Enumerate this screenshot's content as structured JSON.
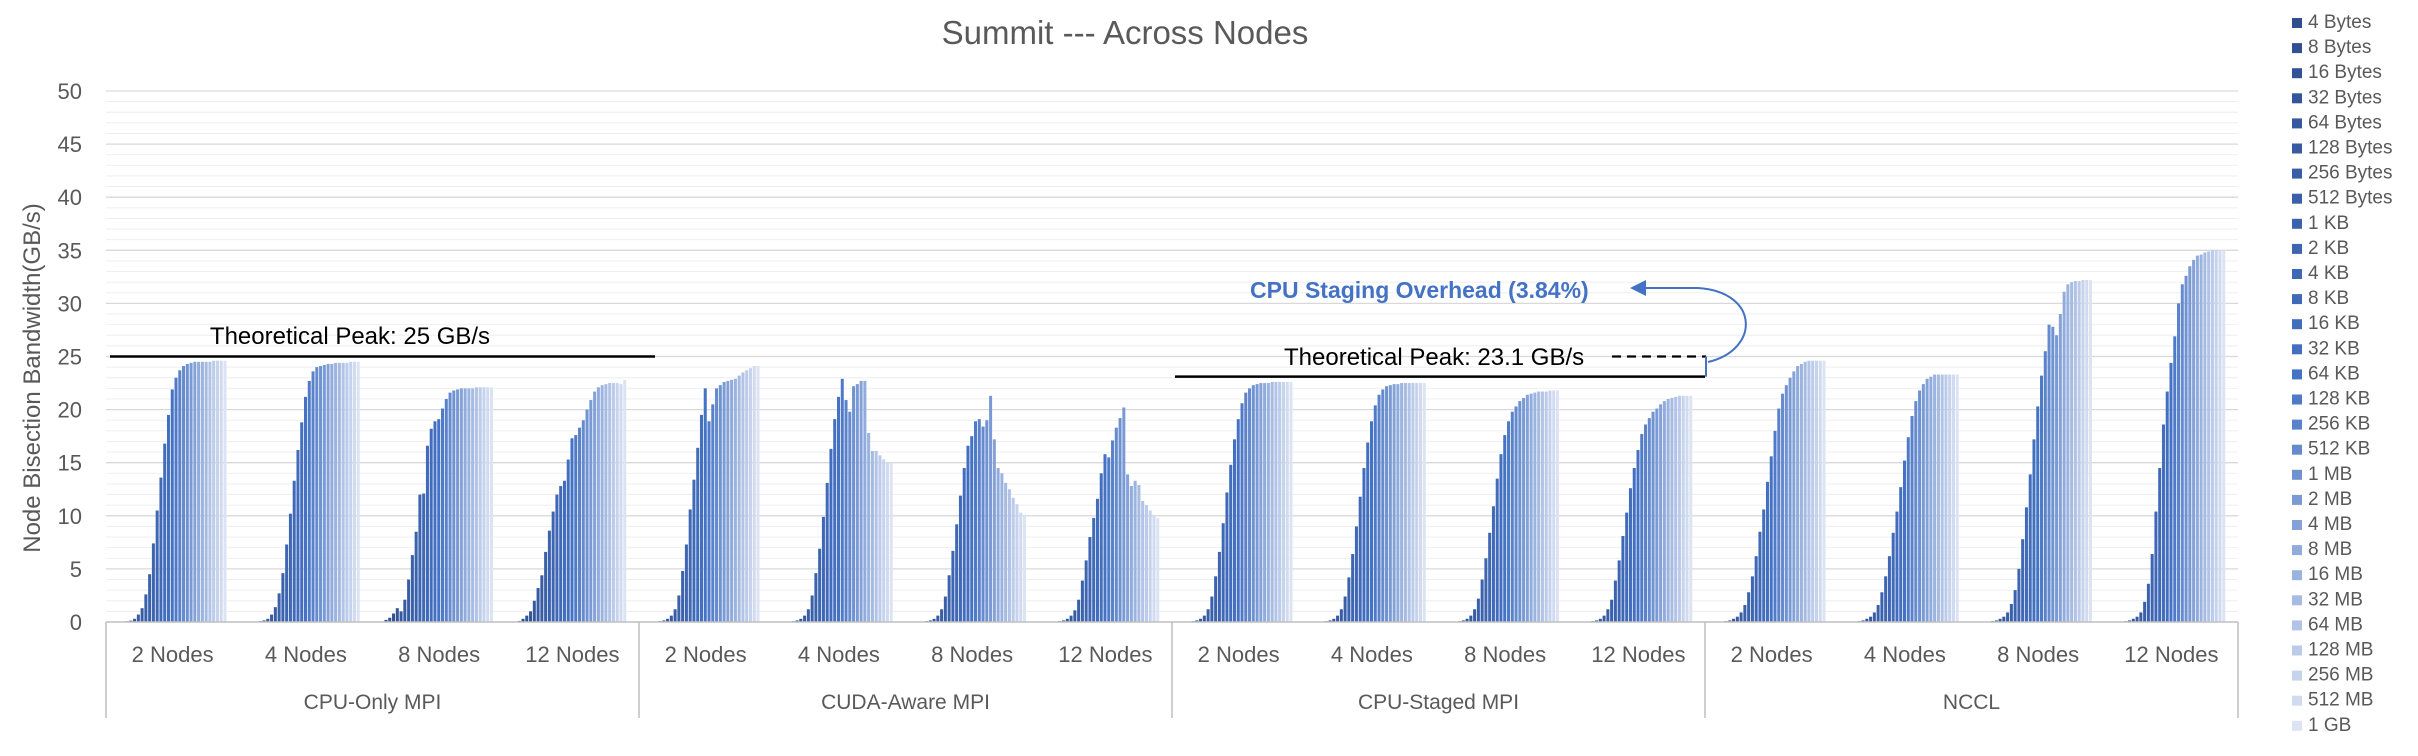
{
  "chart_data": {
    "type": "bar",
    "title": "Summit --- Across Nodes",
    "ylabel": "Node Bisection Bandwidth(GB/s)",
    "ylim": [
      0,
      50
    ],
    "yticks": [
      0,
      5,
      10,
      15,
      20,
      25,
      30,
      35,
      40,
      45,
      50
    ],
    "grid": true,
    "legend_position": "right",
    "legend": [
      "4 Bytes",
      "8 Bytes",
      "16 Bytes",
      "32 Bytes",
      "64 Bytes",
      "128 Bytes",
      "256 Bytes",
      "512 Bytes",
      "1 KB",
      "2 KB",
      "4 KB",
      "8 KB",
      "16 KB",
      "32 KB",
      "64 KB",
      "128 KB",
      "256 KB",
      "512 KB",
      "1 MB",
      "2 MB",
      "4 MB",
      "8 MB",
      "16 MB",
      "32 MB",
      "64 MB",
      "128 MB",
      "256 MB",
      "512 MB",
      "1 GB"
    ],
    "groups": [
      {
        "name": "CPU-Only MPI",
        "categories": [
          {
            "label": "2 Nodes",
            "values": [
              0.02,
              0.03,
              0.07,
              0.13,
              0.3,
              0.7,
              1.3,
              2.6,
              4.5,
              7.4,
              10.5,
              13.6,
              16.8,
              19.5,
              21.9,
              23.0,
              23.7,
              24.1,
              24.3,
              24.4,
              24.5,
              24.5,
              24.5,
              24.5,
              24.5,
              24.6,
              24.6,
              24.6,
              24.6
            ]
          },
          {
            "label": "4 Nodes",
            "values": [
              0.02,
              0.04,
              0.08,
              0.15,
              0.3,
              0.7,
              1.4,
              2.7,
              4.6,
              7.3,
              10.2,
              13.3,
              16.2,
              18.8,
              21.2,
              22.7,
              23.6,
              24.0,
              24.1,
              24.2,
              24.3,
              24.3,
              24.4,
              24.4,
              24.4,
              24.4,
              24.5,
              24.5,
              24.5
            ]
          },
          {
            "label": "8 Nodes",
            "values": [
              0.2,
              0.4,
              0.8,
              1.3,
              1.0,
              2.1,
              4.0,
              6.3,
              8.5,
              12.0,
              12.1,
              16.6,
              18.2,
              18.9,
              19.1,
              20.1,
              21.0,
              21.6,
              21.8,
              21.9,
              22.0,
              22.0,
              22.0,
              22.0,
              22.1,
              22.1,
              22.1,
              22.1,
              22.1
            ]
          },
          {
            "label": "12 Nodes",
            "values": [
              0.1,
              0.3,
              0.6,
              1.0,
              2.0,
              3.2,
              4.4,
              6.6,
              8.6,
              10.4,
              12.0,
              12.8,
              13.3,
              15.3,
              17.3,
              17.6,
              18.3,
              19.0,
              20.0,
              20.9,
              21.7,
              22.1,
              22.3,
              22.4,
              22.5,
              22.5,
              22.5,
              22.4,
              22.8
            ]
          }
        ]
      },
      {
        "name": "CUDA-Aware MPI",
        "categories": [
          {
            "label": "2 Nodes",
            "values": [
              0.02,
              0.04,
              0.08,
              0.15,
              0.3,
              0.6,
              1.2,
              2.5,
              4.8,
              7.3,
              10.6,
              13.4,
              16.4,
              19.5,
              22.0,
              18.9,
              20.5,
              22.0,
              22.3,
              22.6,
              22.7,
              22.8,
              22.9,
              23.2,
              23.5,
              23.7,
              23.9,
              24.1,
              24.1
            ]
          },
          {
            "label": "4 Nodes",
            "values": [
              0.02,
              0.04,
              0.08,
              0.15,
              0.3,
              0.6,
              1.2,
              2.5,
              4.6,
              6.9,
              9.9,
              13.1,
              16.3,
              19.1,
              21.2,
              22.9,
              20.9,
              19.8,
              22.2,
              22.4,
              22.7,
              22.7,
              17.8,
              16.1,
              16.1,
              15.7,
              15.3,
              15.0,
              15.0
            ]
          },
          {
            "label": "8 Nodes",
            "values": [
              0.02,
              0.04,
              0.08,
              0.15,
              0.3,
              0.6,
              1.2,
              2.4,
              4.4,
              6.7,
              9.2,
              11.9,
              14.5,
              16.6,
              17.5,
              18.9,
              19.1,
              18.4,
              19.0,
              21.3,
              17.2,
              14.5,
              14.0,
              13.1,
              12.5,
              11.7,
              11.1,
              10.3,
              10.1
            ]
          },
          {
            "label": "12 Nodes",
            "values": [
              0.02,
              0.04,
              0.08,
              0.15,
              0.3,
              0.6,
              1.1,
              2.1,
              3.9,
              5.8,
              8.0,
              9.8,
              11.6,
              14.0,
              15.8,
              15.5,
              17.1,
              18.3,
              19.2,
              20.2,
              13.9,
              12.8,
              13.3,
              12.9,
              11.4,
              11.0,
              10.5,
              10.1,
              9.8
            ]
          }
        ]
      },
      {
        "name": "CPU-Staged MPI",
        "categories": [
          {
            "label": "2 Nodes",
            "values": [
              0.02,
              0.04,
              0.08,
              0.15,
              0.3,
              0.6,
              1.2,
              2.4,
              4.3,
              6.6,
              9.3,
              12.2,
              14.8,
              17.2,
              19.1,
              20.6,
              21.6,
              22.0,
              22.3,
              22.4,
              22.5,
              22.5,
              22.5,
              22.6,
              22.6,
              22.6,
              22.6,
              22.6,
              22.6
            ]
          },
          {
            "label": "4 Nodes",
            "values": [
              0.02,
              0.04,
              0.08,
              0.15,
              0.3,
              0.6,
              1.2,
              2.4,
              4.2,
              6.4,
              9.0,
              11.8,
              14.5,
              16.9,
              18.9,
              20.4,
              21.4,
              21.9,
              22.2,
              22.3,
              22.4,
              22.4,
              22.5,
              22.5,
              22.5,
              22.5,
              22.5,
              22.5,
              22.5
            ]
          },
          {
            "label": "8 Nodes",
            "values": [
              0.02,
              0.04,
              0.08,
              0.15,
              0.3,
              0.6,
              1.2,
              2.2,
              4.0,
              6.0,
              8.4,
              10.9,
              13.5,
              15.8,
              17.6,
              18.9,
              19.8,
              20.3,
              20.8,
              21.1,
              21.4,
              21.5,
              21.6,
              21.7,
              21.7,
              21.7,
              21.8,
              21.8,
              21.8
            ]
          },
          {
            "label": "12 Nodes",
            "values": [
              0.02,
              0.04,
              0.08,
              0.15,
              0.3,
              0.6,
              1.2,
              2.1,
              3.9,
              5.8,
              8.1,
              10.3,
              12.6,
              14.5,
              16.2,
              17.7,
              18.6,
              19.2,
              19.8,
              20.1,
              20.5,
              20.8,
              21.0,
              21.1,
              21.2,
              21.3,
              21.3,
              21.3,
              21.3
            ]
          }
        ]
      },
      {
        "name": "NCCL",
        "categories": [
          {
            "label": "2 Nodes",
            "values": [
              0.02,
              0.04,
              0.08,
              0.15,
              0.3,
              0.5,
              0.9,
              1.6,
              2.8,
              4.3,
              6.2,
              8.5,
              10.6,
              13.2,
              15.6,
              18.0,
              20.1,
              21.5,
              22.3,
              23.0,
              23.6,
              24.1,
              24.3,
              24.5,
              24.6,
              24.6,
              24.6,
              24.6,
              24.6
            ]
          },
          {
            "label": "4 Nodes",
            "values": [
              0.02,
              0.04,
              0.08,
              0.15,
              0.3,
              0.5,
              0.9,
              1.6,
              2.8,
              4.3,
              6.2,
              8.4,
              10.4,
              12.7,
              15.2,
              17.4,
              19.4,
              20.8,
              21.8,
              22.4,
              22.9,
              23.1,
              23.3,
              23.3,
              23.3,
              23.3,
              23.3,
              23.3,
              23.3
            ]
          },
          {
            "label": "8 Nodes",
            "values": [
              0.02,
              0.04,
              0.08,
              0.15,
              0.3,
              0.5,
              0.9,
              1.7,
              3.0,
              5.0,
              7.8,
              10.8,
              13.9,
              17.2,
              20.3,
              23.2,
              25.5,
              28.0,
              27.8,
              27.0,
              29.0,
              31.1,
              31.8,
              32.0,
              32.1,
              32.1,
              32.2,
              32.2,
              32.2
            ]
          },
          {
            "label": "12 Nodes",
            "values": [
              0.02,
              0.04,
              0.08,
              0.15,
              0.3,
              0.5,
              0.9,
              1.9,
              3.6,
              6.4,
              10.4,
              14.5,
              18.6,
              21.7,
              24.4,
              26.9,
              30.0,
              31.8,
              32.6,
              33.5,
              34.1,
              34.5,
              34.6,
              34.8,
              34.9,
              35.0,
              35.0,
              35.0,
              35.0
            ]
          }
        ]
      }
    ],
    "annotations": {
      "peak_cpu_only": "Theoretical Peak: 25 GB/s",
      "peak_cpu_only_value": 25,
      "peak_cpu_staged": "Theoretical Peak: 23.1 GB/s",
      "peak_cpu_staged_value": 23.1,
      "overhead": "CPU Staging Overhead (3.84%)"
    },
    "colors": {
      "dark": "#2F4D8F",
      "mid": "#4472C4",
      "light": "#DCE3F3",
      "text": "#595959",
      "grid": "#D9D9D9",
      "annotation": "#4472C4"
    }
  }
}
